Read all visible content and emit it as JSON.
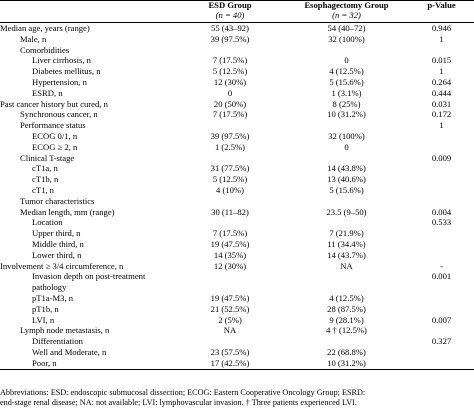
{
  "header": {
    "col0": "",
    "col1": "ESD Group",
    "col1_sub": "(n = 40)",
    "col2": "Esophagectomy Group",
    "col2_sub": "(n = 32)",
    "col3": "p-Value"
  },
  "rows": [
    {
      "label": "Median age, years (range)",
      "a": "55 (43–92)",
      "b": "54 (40–72)",
      "p": "0.946",
      "style": "lbl"
    },
    {
      "label": "Male, n",
      "a": "39 (97.5%)",
      "b": "32 (100%)",
      "p": "1",
      "style": "ind"
    },
    {
      "label": "Comorbidities",
      "a": "",
      "b": "",
      "p": "",
      "style": "ind"
    },
    {
      "label": "Liver cirrhosis, n",
      "a": "7 (17.5%)",
      "b": "0",
      "p": "0.015",
      "style": "ind2"
    },
    {
      "label": "Diabetes mellitus, n",
      "a": "5 (12.5%)",
      "b": "4 (12.5%)",
      "p": "1",
      "style": "ind2"
    },
    {
      "label": "Hypertension, n",
      "a": "12 (30%)",
      "b": "5 (15.6%)",
      "p": "0.264",
      "style": "ind2"
    },
    {
      "label": "ESRD, n",
      "a": "0",
      "b": "1 (3.1%)",
      "p": "0.444",
      "style": "ind2"
    },
    {
      "label": "Past cancer history but cured, n",
      "a": "20 (50%)",
      "b": "8 (25%)",
      "p": "0.031",
      "style": "lbl"
    },
    {
      "label": "Synchronous cancer, n",
      "a": "7 (17.5%)",
      "b": "10 (31.2%)",
      "p": "0.172",
      "style": "ind"
    },
    {
      "label": "Performance status",
      "a": "",
      "b": "",
      "p": "1",
      "style": "ind"
    },
    {
      "label": "ECOG 0/1, n",
      "a": "39 (97.5%)",
      "b": "32 (100%)",
      "p": "",
      "style": "ind2"
    },
    {
      "label": "ECOG ≥ 2, n",
      "a": "1 (2.5%)",
      "b": "0",
      "p": "",
      "style": "ind2"
    },
    {
      "label": "Clinical T-stage",
      "a": "",
      "b": "",
      "p": "0.009",
      "style": "ind"
    },
    {
      "label": "cT1a, n",
      "a": "31 (77.5%)",
      "b": "14 (43.8%)",
      "p": "",
      "style": "ind2"
    },
    {
      "label": "cT1b, n",
      "a": "5 (12.5%)",
      "b": "13 (40.6%)",
      "p": "",
      "style": "ind2"
    },
    {
      "label": "cT1, n",
      "a": "4 (10%)",
      "b": "5 (15.6%)",
      "p": "",
      "style": "ind2"
    },
    {
      "label": "Tumor characteristics",
      "a": "",
      "b": "",
      "p": "",
      "style": "ind"
    },
    {
      "label": "Median length, mm (range)",
      "a": "30 (11–82)",
      "b": "23.5 (9–50)",
      "p": "0.004",
      "style": "ind"
    },
    {
      "label": "Location",
      "a": "",
      "b": "",
      "p": "0.533",
      "style": "ind2"
    },
    {
      "label": "Upper third, n",
      "a": "7 (17.5%)",
      "b": "7 (21.9%)",
      "p": "",
      "style": "ind2"
    },
    {
      "label": "Middle third, n",
      "a": "19 (47.5%)",
      "b": "11 (34.4%)",
      "p": "",
      "style": "ind2"
    },
    {
      "label": "Lower third, n",
      "a": "14 (35%)",
      "b": "14 (43.7%)",
      "p": "",
      "style": "ind2"
    },
    {
      "label": "Involvement ≥ 3/4 circumference, n",
      "a": "12 (30%)",
      "b": "NA",
      "p": "-",
      "style": "lbl"
    },
    {
      "label": "Invasion depth on post-treatment pathology",
      "a": "",
      "b": "",
      "p": "0.001",
      "style": "ind2wrap"
    },
    {
      "label": "pT1a-M3, n",
      "a": "19 (47.5%)",
      "b": "4 (12.5%)",
      "p": "",
      "style": "ind2"
    },
    {
      "label": "pT1b, n",
      "a": "21 (52.5%)",
      "b": "28 (87.5%)",
      "p": "",
      "style": "ind2"
    },
    {
      "label": "LVI, n",
      "a": "2 (5%)",
      "b": "9 (28.1%)",
      "p": "0.007",
      "style": "ind2"
    },
    {
      "label": "Lymph node metastasis, n",
      "a": "NA",
      "b": "4 † (12.5%)",
      "p": "",
      "style": "ind"
    },
    {
      "label": "Differentiation",
      "a": "",
      "b": "",
      "p": "0.327",
      "style": "ind2"
    },
    {
      "label": "Well and Moderate, n",
      "a": "23 (57.5%)",
      "b": "22 (68.8%)",
      "p": "",
      "style": "ind2"
    },
    {
      "label": "Poor, n",
      "a": "17 (42.5%)",
      "b": "10 (31.2%)",
      "p": "",
      "style": "ind2"
    }
  ],
  "footnote": {
    "line1": "Abbreviations: ESD: endoscopic submucosal dissection; ECOG: Eastern Cooperative Oncology Group; ESRD:",
    "line2": "end-stage renal disease; NA: not available; LVI: lymphovascular invasion. † Three patients experienced LVI."
  }
}
